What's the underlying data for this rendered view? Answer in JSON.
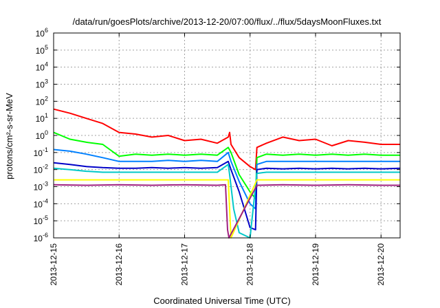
{
  "chart_data": {
    "type": "line",
    "title": "/data/run/goesPlots/archive/2013-12-20/07:00/flux/../flux/5daysMoonFluxes.txt",
    "xlabel": "Coordinated Universal Time (UTC)",
    "ylabel": "protons/cm²-s-sr-MeV",
    "yscale": "log",
    "ylim": [
      1e-06,
      1000000.0
    ],
    "xlim": [
      "2013-12-15T00:00",
      "2013-12-20T07:00"
    ],
    "grid": true,
    "y_ticks": [
      {
        "base": "10",
        "exp": "-6"
      },
      {
        "base": "10",
        "exp": "-5"
      },
      {
        "base": "10",
        "exp": "-4"
      },
      {
        "base": "10",
        "exp": "-3"
      },
      {
        "base": "10",
        "exp": "-2"
      },
      {
        "base": "10",
        "exp": "-1"
      },
      {
        "base": "10",
        "exp": "0"
      },
      {
        "base": "10",
        "exp": "1"
      },
      {
        "base": "10",
        "exp": "2"
      },
      {
        "base": "10",
        "exp": "3"
      },
      {
        "base": "10",
        "exp": "4"
      },
      {
        "base": "10",
        "exp": "5"
      },
      {
        "base": "10",
        "exp": "6"
      }
    ],
    "x_ticks": [
      "2013-12-15",
      "2013-12-16",
      "2013-12-17",
      "2013-12-18",
      "2013-12-19",
      "2013-12-20"
    ],
    "series": [
      {
        "color": "#ff0000",
        "x": [
          "2013-12-15T00:00",
          "2013-12-15T06:00",
          "2013-12-15T12:00",
          "2013-12-15T18:00",
          "2013-12-16T00:00",
          "2013-12-16T06:00",
          "2013-12-16T12:00",
          "2013-12-16T18:00",
          "2013-12-17T00:00",
          "2013-12-17T06:00",
          "2013-12-17T12:00",
          "2013-12-17T16:00",
          "2013-12-17T16:30",
          "2013-12-17T17:00",
          "2013-12-17T20:00",
          "2013-12-18T00:00",
          "2013-12-18T02:00",
          "2013-12-18T02:30",
          "2013-12-18T06:00",
          "2013-12-18T12:00",
          "2013-12-18T18:00",
          "2013-12-19T00:00",
          "2013-12-19T06:00",
          "2013-12-19T12:00",
          "2013-12-19T18:00",
          "2013-12-20T00:00",
          "2013-12-20T07:00"
        ],
        "y": [
          35,
          20,
          10,
          5,
          1.5,
          1.2,
          0.8,
          1.0,
          0.5,
          0.6,
          0.35,
          0.8,
          1.5,
          0.3,
          0.05,
          0.015,
          0.01,
          0.2,
          0.35,
          0.8,
          0.5,
          0.6,
          0.25,
          0.5,
          0.4,
          0.3,
          0.3
        ]
      },
      {
        "color": "#00ff00",
        "x": [
          "2013-12-15T00:00",
          "2013-12-15T06:00",
          "2013-12-15T12:00",
          "2013-12-15T18:00",
          "2013-12-16T00:00",
          "2013-12-16T06:00",
          "2013-12-16T12:00",
          "2013-12-16T18:00",
          "2013-12-17T00:00",
          "2013-12-17T06:00",
          "2013-12-17T12:00",
          "2013-12-17T16:00",
          "2013-12-17T17:00",
          "2013-12-17T20:00",
          "2013-12-18T00:00",
          "2013-12-18T02:00",
          "2013-12-18T02:30",
          "2013-12-18T06:00",
          "2013-12-18T12:00",
          "2013-12-18T18:00",
          "2013-12-19T00:00",
          "2013-12-19T06:00",
          "2013-12-19T12:00",
          "2013-12-19T18:00",
          "2013-12-20T00:00",
          "2013-12-20T07:00"
        ],
        "y": [
          1.5,
          0.6,
          0.4,
          0.3,
          0.06,
          0.08,
          0.07,
          0.08,
          0.07,
          0.08,
          0.07,
          0.2,
          0.1,
          0.005,
          0.0005,
          0.0002,
          0.05,
          0.08,
          0.07,
          0.08,
          0.07,
          0.08,
          0.07,
          0.08,
          0.07,
          0.07
        ]
      },
      {
        "color": "#0080ff",
        "x": [
          "2013-12-15T00:00",
          "2013-12-15T06:00",
          "2013-12-15T12:00",
          "2013-12-15T18:00",
          "2013-12-16T00:00",
          "2013-12-16T06:00",
          "2013-12-16T12:00",
          "2013-12-16T18:00",
          "2013-12-17T00:00",
          "2013-12-17T06:00",
          "2013-12-17T12:00",
          "2013-12-17T16:00",
          "2013-12-17T17:00",
          "2013-12-17T20:00",
          "2013-12-18T00:00",
          "2013-12-18T02:00",
          "2013-12-18T02:30",
          "2013-12-18T06:00",
          "2013-12-18T12:00",
          "2013-12-18T18:00",
          "2013-12-19T00:00",
          "2013-12-19T06:00",
          "2013-12-19T12:00",
          "2013-12-19T18:00",
          "2013-12-20T00:00",
          "2013-12-20T07:00"
        ],
        "y": [
          0.15,
          0.12,
          0.08,
          0.05,
          0.03,
          0.03,
          0.03,
          0.035,
          0.03,
          0.035,
          0.03,
          0.1,
          0.03,
          0.002,
          0.0001,
          5e-05,
          0.02,
          0.03,
          0.03,
          0.03,
          0.03,
          0.03,
          0.03,
          0.03,
          0.03,
          0.03
        ]
      },
      {
        "color": "#0000c8",
        "x": [
          "2013-12-15T00:00",
          "2013-12-15T06:00",
          "2013-12-15T12:00",
          "2013-12-15T18:00",
          "2013-12-16T00:00",
          "2013-12-16T06:00",
          "2013-12-16T12:00",
          "2013-12-16T18:00",
          "2013-12-17T00:00",
          "2013-12-17T06:00",
          "2013-12-17T12:00",
          "2013-12-17T16:00",
          "2013-12-17T17:00",
          "2013-12-17T20:00",
          "2013-12-18T00:00",
          "2013-12-18T02:00",
          "2013-12-18T02:30",
          "2013-12-18T06:00",
          "2013-12-18T12:00",
          "2013-12-18T18:00",
          "2013-12-19T00:00",
          "2013-12-19T06:00",
          "2013-12-19T12:00",
          "2013-12-19T18:00",
          "2013-12-20T00:00",
          "2013-12-20T07:00"
        ],
        "y": [
          0.025,
          0.02,
          0.015,
          0.013,
          0.012,
          0.012,
          0.013,
          0.012,
          0.013,
          0.012,
          0.013,
          0.03,
          0.01,
          0.0005,
          4e-06,
          3e-06,
          0.01,
          0.012,
          0.011,
          0.012,
          0.011,
          0.012,
          0.011,
          0.012,
          0.011,
          0.012
        ]
      },
      {
        "color": "#00c8c8",
        "x": [
          "2013-12-15T00:00",
          "2013-12-15T06:00",
          "2013-12-15T12:00",
          "2013-12-15T18:00",
          "2013-12-16T00:00",
          "2013-12-16T06:00",
          "2013-12-16T12:00",
          "2013-12-16T18:00",
          "2013-12-17T00:00",
          "2013-12-17T06:00",
          "2013-12-17T12:00",
          "2013-12-17T16:00",
          "2013-12-17T16:30",
          "2013-12-17T18:00",
          "2013-12-17T20:00",
          "2013-12-18T00:00",
          "2013-12-18T02:30",
          "2013-12-18T06:00",
          "2013-12-18T12:00",
          "2013-12-18T18:00",
          "2013-12-19T00:00",
          "2013-12-19T06:00",
          "2013-12-19T12:00",
          "2013-12-19T18:00",
          "2013-12-20T00:00",
          "2013-12-20T07:00"
        ],
        "y": [
          0.012,
          0.01,
          0.008,
          0.007,
          0.007,
          0.007,
          0.007,
          0.007,
          0.007,
          0.007,
          0.007,
          0.02,
          0.005,
          5e-05,
          2e-06,
          1e-06,
          0.006,
          0.007,
          0.007,
          0.007,
          0.007,
          0.007,
          0.007,
          0.007,
          0.007,
          0.007
        ]
      },
      {
        "color": "#ffff00",
        "x": [
          "2013-12-15T00:00",
          "2013-12-16T00:00",
          "2013-12-17T00:00",
          "2013-12-17T15:00",
          "2013-12-17T16:00",
          "2013-12-17T17:00",
          "2013-12-18T02:30",
          "2013-12-19T00:00",
          "2013-12-20T00:00",
          "2013-12-20T07:00"
        ],
        "y": [
          0.0025,
          0.0025,
          0.0025,
          0.0025,
          0.0025,
          1e-06,
          0.0025,
          0.0025,
          0.0025,
          0.0025
        ]
      },
      {
        "color": "#a02080",
        "x": [
          "2013-12-15T00:00",
          "2013-12-15T12:00",
          "2013-12-16T00:00",
          "2013-12-16T12:00",
          "2013-12-17T00:00",
          "2013-12-17T12:00",
          "2013-12-17T15:00",
          "2013-12-17T15:45",
          "2013-12-17T16:15",
          "2013-12-18T02:30",
          "2013-12-18T12:00",
          "2013-12-19T00:00",
          "2013-12-19T12:00",
          "2013-12-20T00:00",
          "2013-12-20T07:00"
        ],
        "y": [
          0.0013,
          0.0012,
          0.0013,
          0.0012,
          0.0013,
          0.0012,
          0.0013,
          3e-06,
          1e-06,
          0.0012,
          0.0013,
          0.0012,
          0.0013,
          0.0012,
          0.0012
        ]
      }
    ]
  }
}
